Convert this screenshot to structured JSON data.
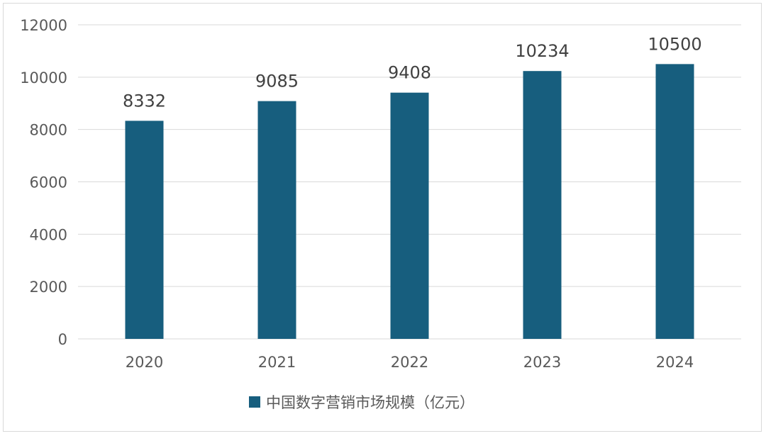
{
  "chart_data": {
    "type": "bar",
    "categories": [
      "2020",
      "2021",
      "2022",
      "2023",
      "2024"
    ],
    "series": [
      {
        "name": "中国数字营销市场规模（亿元）",
        "values": [
          8332,
          9085,
          9408,
          10234,
          10500
        ],
        "color": "#175E7E"
      }
    ],
    "ylim": [
      0,
      12000
    ],
    "yticks": [
      0,
      2000,
      4000,
      6000,
      8000,
      10000,
      12000
    ],
    "grid": true,
    "legend": "bottom",
    "data_labels": true
  }
}
